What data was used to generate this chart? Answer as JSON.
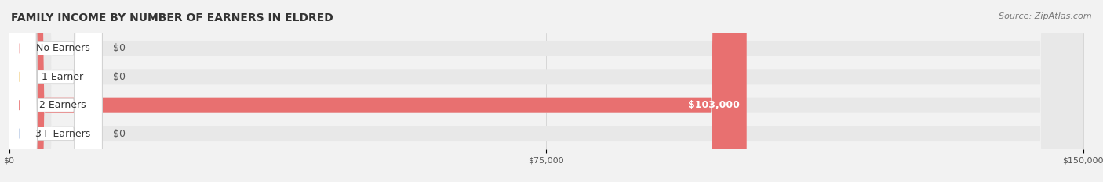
{
  "title": "FAMILY INCOME BY NUMBER OF EARNERS IN ELDRED",
  "source": "Source: ZipAtlas.com",
  "categories": [
    "No Earners",
    "1 Earner",
    "2 Earners",
    "3+ Earners"
  ],
  "values": [
    0,
    0,
    103000,
    0
  ],
  "max_value": 150000,
  "bar_colors": [
    "#f08080",
    "#f5c26b",
    "#e87070",
    "#a0b8d8"
  ],
  "label_bg_colors": [
    "#f5c0c0",
    "#f5daa0",
    "#e87070",
    "#c0d0e8"
  ],
  "bar_height": 0.55,
  "xlim": [
    0,
    150000
  ],
  "xticks": [
    0,
    75000,
    150000
  ],
  "xtick_labels": [
    "$0",
    "$75,000",
    "$150,000"
  ],
  "value_labels": [
    "$0",
    "$0",
    "$103,000",
    "$0"
  ],
  "background_color": "#f2f2f2",
  "bar_bg_color": "#e8e8e8",
  "title_fontsize": 10,
  "source_fontsize": 8,
  "label_fontsize": 9,
  "value_fontsize": 9
}
